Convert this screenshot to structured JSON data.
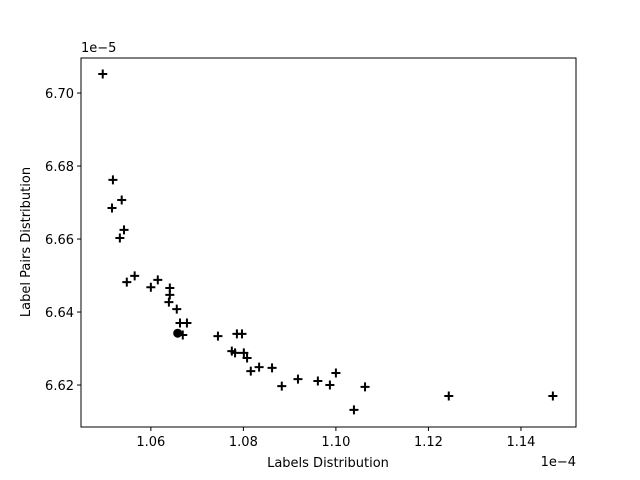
{
  "chart_data": {
    "type": "scatter",
    "xlabel": "Labels Distribution",
    "ylabel": "Label Pairs Distribution",
    "x_offset_label": "1e−4",
    "y_offset_label": "1e−5",
    "xlim": [
      1.0449,
      1.1519
    ],
    "ylim": [
      6.6085,
      6.7096
    ],
    "xticks": [
      1.06,
      1.08,
      {
        "value": 1.1,
        "label": "1.10"
      },
      1.12,
      1.14
    ],
    "yticks": [
      {
        "value": 6.62,
        "label": "6.62"
      },
      {
        "value": 6.64,
        "label": "6.64"
      },
      {
        "value": 6.66,
        "label": "6.66"
      },
      {
        "value": 6.68,
        "label": "6.68"
      },
      {
        "value": 6.7,
        "label": "6.70"
      }
    ],
    "series": [
      {
        "marker": "plus",
        "color": "#000000",
        "x": [
          1.0496,
          1.0518,
          1.0537,
          1.0516,
          1.0542,
          1.0533,
          1.0565,
          1.0548,
          1.0615,
          1.06,
          1.0641,
          1.0641,
          1.0639,
          1.0656,
          1.0663,
          1.0678,
          1.0669,
          1.0745,
          1.0786,
          1.0797,
          1.0775,
          1.0782,
          1.0801,
          1.0808,
          1.0834,
          1.0816,
          1.0862,
          1.0883,
          1.0918,
          1.0961,
          1.0987,
          1.1,
          1.1063,
          1.1039,
          1.1244,
          1.1469
        ],
        "y": [
          6.7052,
          6.6762,
          6.6707,
          6.6685,
          6.6625,
          6.6603,
          6.6499,
          6.6482,
          6.6488,
          6.6468,
          6.6466,
          6.6447,
          6.6427,
          6.6408,
          6.637,
          6.637,
          6.6337,
          6.6334,
          6.634,
          6.634,
          6.6293,
          6.6288,
          6.6288,
          6.6274,
          6.6249,
          6.6238,
          6.6247,
          6.6197,
          6.6216,
          6.6211,
          6.62,
          6.6233,
          6.6195,
          6.6132,
          6.617,
          6.617
        ]
      },
      {
        "marker": "circle",
        "color": "#000000",
        "x": [
          1.0658
        ],
        "y": [
          6.6342
        ]
      }
    ]
  }
}
